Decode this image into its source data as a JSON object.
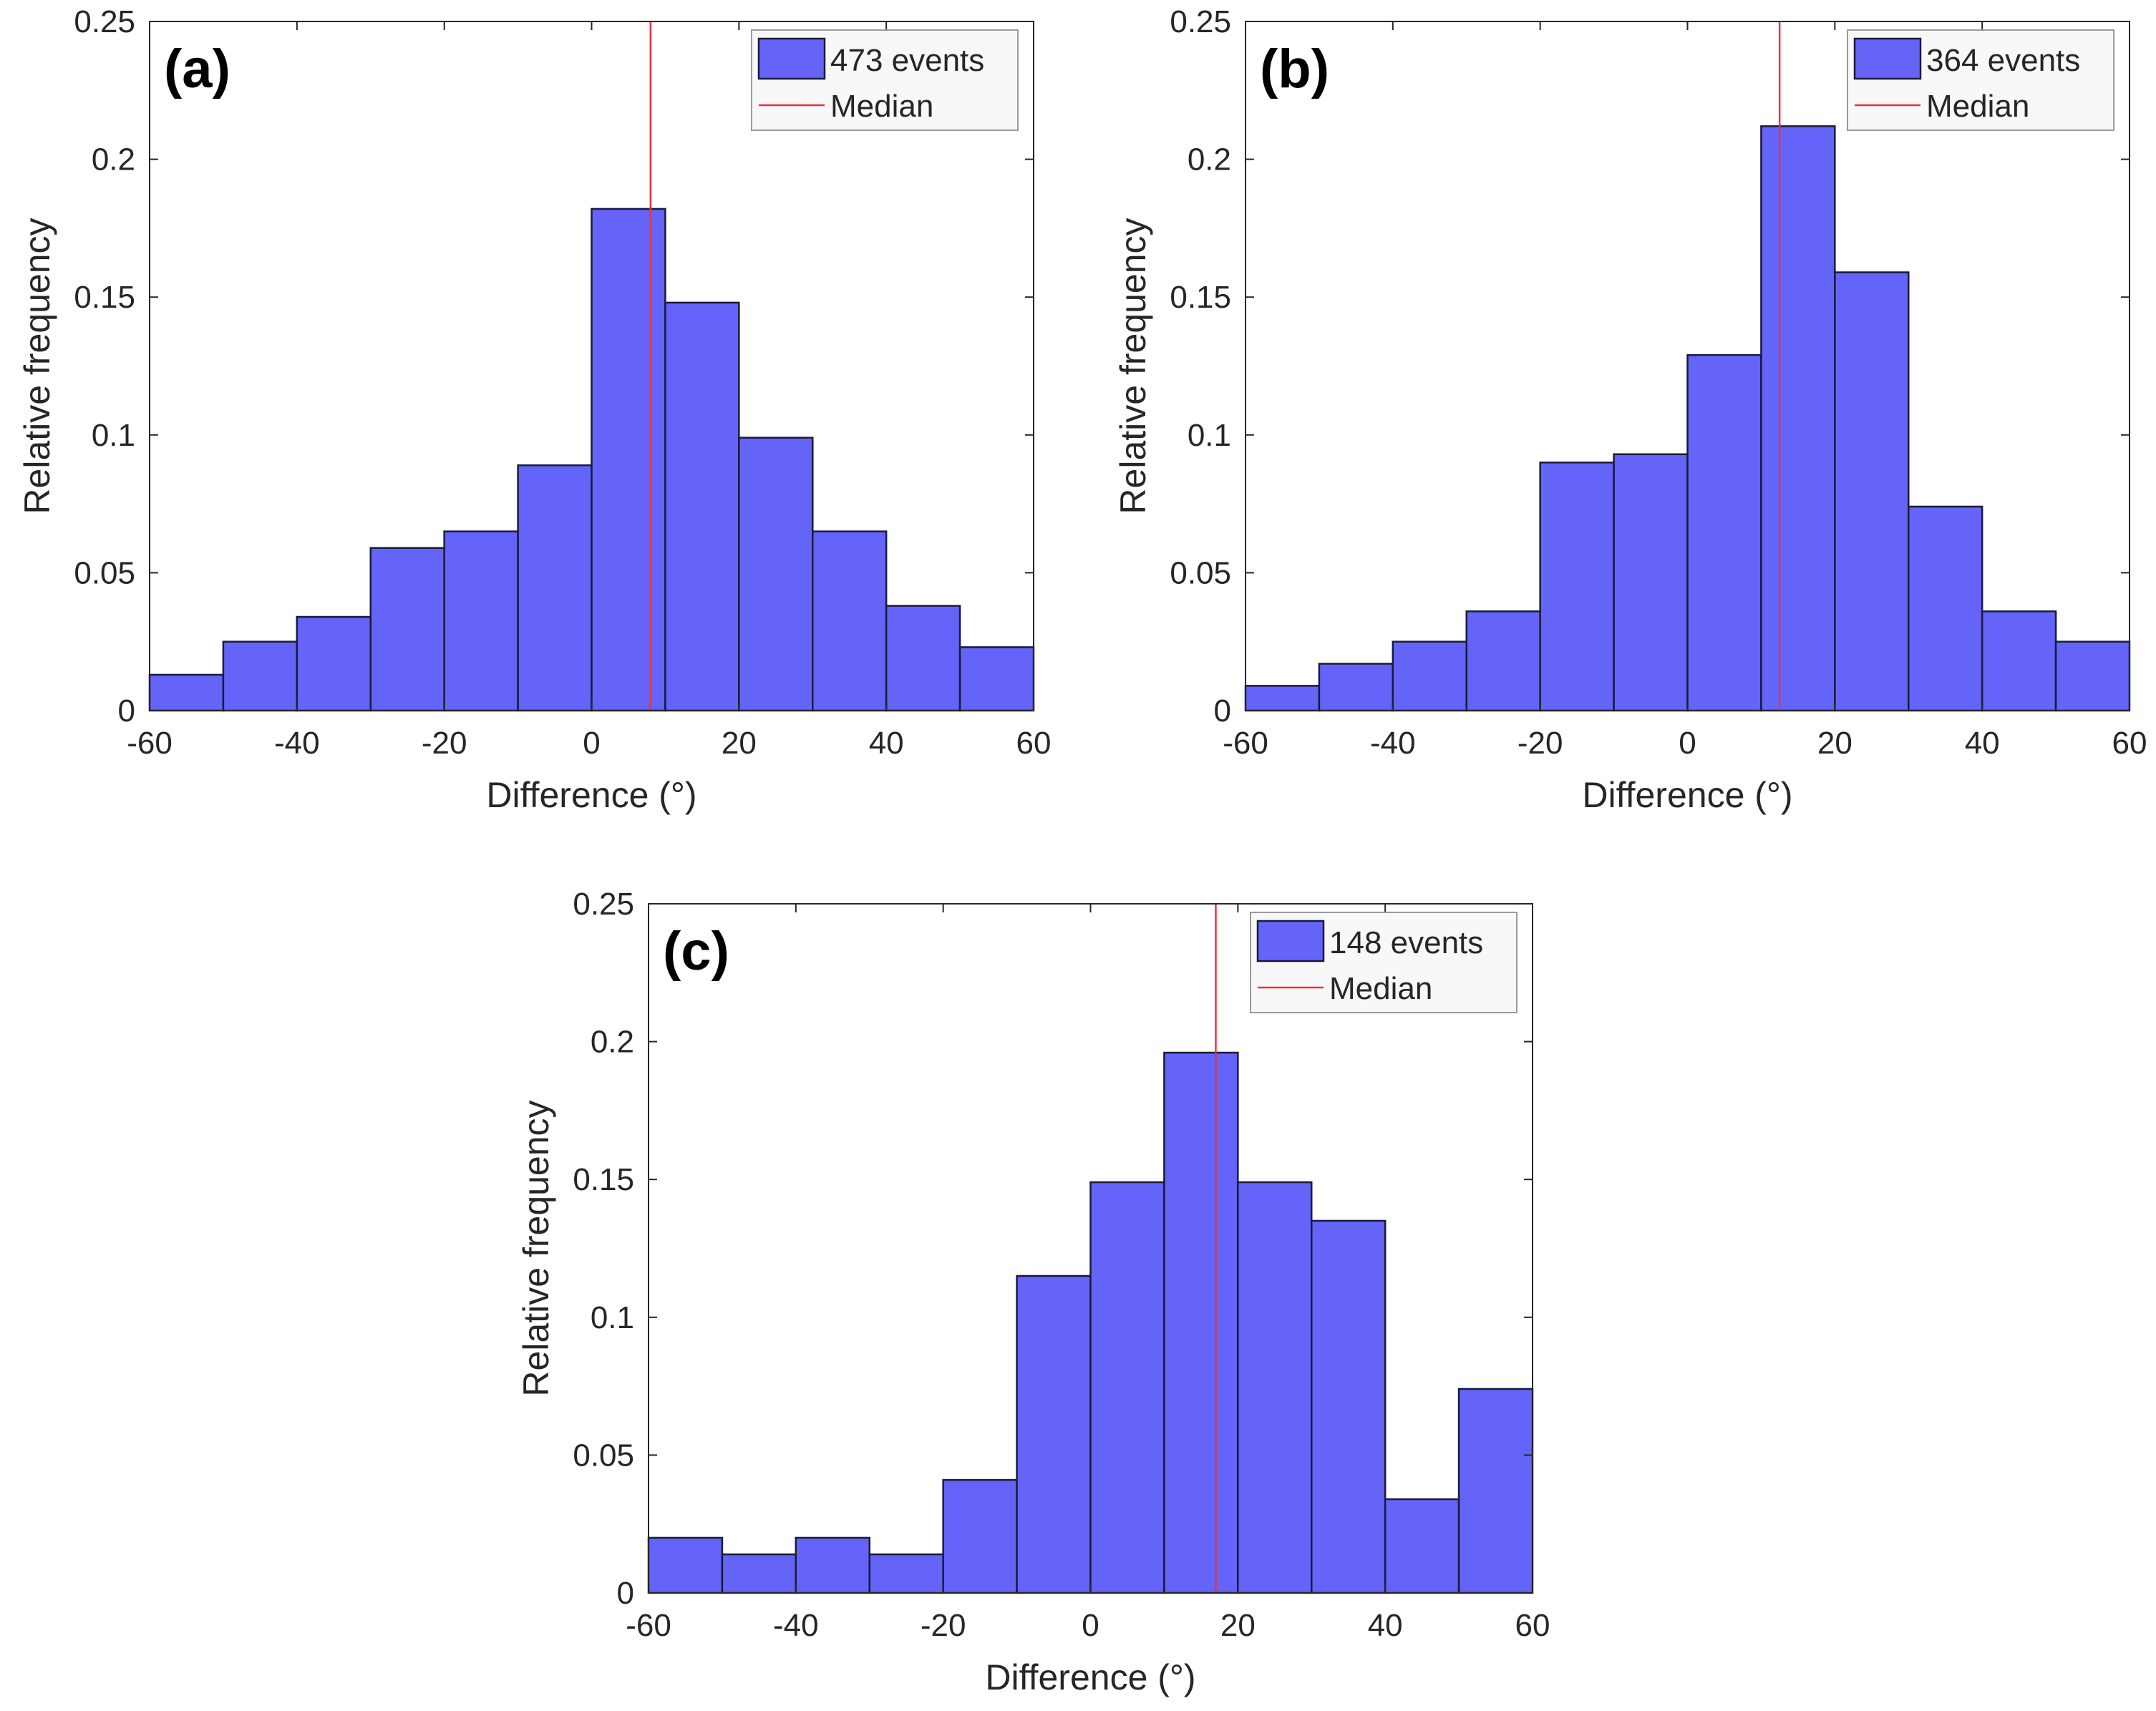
{
  "colors": {
    "bar_fill": "#6464f8",
    "bar_edge": "#1a1a3a",
    "median_line": "#e8323c",
    "axis": "#262626",
    "legend_bg": "#f8f8f8",
    "legend_edge": "#9a9a9a"
  },
  "chart_data": [
    {
      "type": "bar",
      "panel_label": "(a)",
      "bin_edges": [
        -60,
        -50,
        -40,
        -30,
        -20,
        -10,
        0,
        10,
        20,
        30,
        40,
        50,
        60
      ],
      "values": [
        0.013,
        0.025,
        0.034,
        0.059,
        0.065,
        0.089,
        0.182,
        0.148,
        0.099,
        0.065,
        0.038,
        0.023
      ],
      "median": 8,
      "xlabel": "Difference (°)",
      "ylabel": "Relative frequency",
      "xlim": [
        -60,
        60
      ],
      "ylim": [
        0,
        0.25
      ],
      "xticks": [
        "-60",
        "-40",
        "-20",
        "0",
        "20",
        "40",
        "60"
      ],
      "yticks": [
        "0",
        "0.05",
        "0.1",
        "0.15",
        "0.2",
        "0.25"
      ],
      "legend": {
        "series": "473 events",
        "median": "Median",
        "position": "top-right"
      }
    },
    {
      "type": "bar",
      "panel_label": "(b)",
      "bin_edges": [
        -60,
        -50,
        -40,
        -30,
        -20,
        -10,
        0,
        10,
        20,
        30,
        40,
        50,
        60
      ],
      "values": [
        0.009,
        0.017,
        0.025,
        0.036,
        0.09,
        0.093,
        0.129,
        0.212,
        0.159,
        0.074,
        0.036,
        0.025
      ],
      "median": 12.5,
      "xlabel": "Difference (°)",
      "ylabel": "Relative frequency",
      "xlim": [
        -60,
        60
      ],
      "ylim": [
        0,
        0.25
      ],
      "xticks": [
        "-60",
        "-40",
        "-20",
        "0",
        "20",
        "40",
        "60"
      ],
      "yticks": [
        "0",
        "0.05",
        "0.1",
        "0.15",
        "0.2",
        "0.25"
      ],
      "legend": {
        "series": "364 events",
        "median": "Median",
        "position": "top-right"
      }
    },
    {
      "type": "bar",
      "panel_label": "(c)",
      "bin_edges": [
        -60,
        -50,
        -40,
        -30,
        -20,
        -10,
        0,
        10,
        20,
        30,
        40,
        50,
        60
      ],
      "values": [
        0.02,
        0.014,
        0.02,
        0.014,
        0.041,
        0.115,
        0.149,
        0.196,
        0.149,
        0.135,
        0.034,
        0.074
      ],
      "median": 17,
      "xlabel": "Difference (°)",
      "ylabel": "Relative frequency",
      "xlim": [
        -60,
        60
      ],
      "ylim": [
        0,
        0.25
      ],
      "xticks": [
        "-60",
        "-40",
        "-20",
        "0",
        "20",
        "40",
        "60"
      ],
      "yticks": [
        "0",
        "0.05",
        "0.1",
        "0.15",
        "0.2",
        "0.25"
      ],
      "legend": {
        "series": "148 events",
        "median": "Median",
        "position": "top-right"
      }
    }
  ]
}
